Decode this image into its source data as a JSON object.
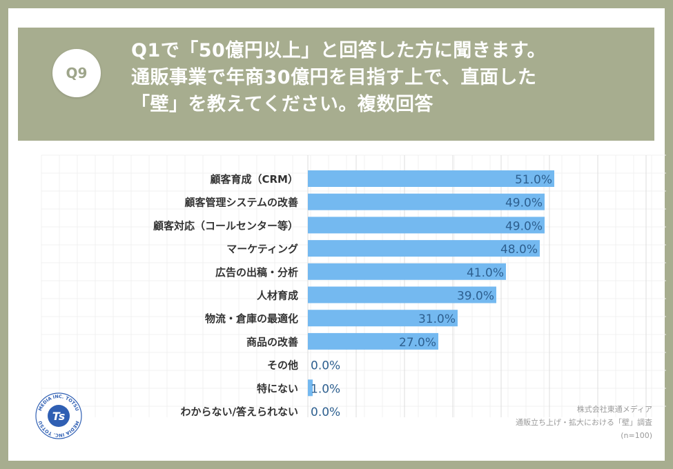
{
  "question": {
    "badge": "Q9",
    "lines": [
      "Q1で「50億円以上」と回答した方に聞きます。",
      "通販事業で年商30億円を目指す上で、直面した",
      "「壁」を教えてください。複数回答"
    ]
  },
  "credit": {
    "company": "株式会社東通メディア",
    "survey": "通販立ち上げ・拡大における「壁」調査",
    "sample": "(n=100)"
  },
  "logo": {
    "text_top": "MEDIA INC. TOTSU",
    "text_bottom": "MEDIA INC. TOTSU",
    "glyph": "Ts"
  },
  "colors": {
    "bar": "#74b9f0",
    "header": "#a7ad8f",
    "label": "#333333",
    "value": "#2d5f8f"
  },
  "chart_data": {
    "type": "bar",
    "orientation": "horizontal",
    "categories": [
      "顧客育成（CRM）",
      "顧客管理システムの改善",
      "顧客対応（コールセンター等）",
      "マーケティング",
      "広告の出稿・分析",
      "人材育成",
      "物流・倉庫の最適化",
      "商品の改善",
      "その他",
      "特にない",
      "わからない/答えられない"
    ],
    "values": [
      51.0,
      49.0,
      49.0,
      48.0,
      41.0,
      39.0,
      31.0,
      27.0,
      0.0,
      1.0,
      0.0
    ],
    "value_labels": [
      "51.0%",
      "49.0%",
      "49.0%",
      "48.0%",
      "41.0%",
      "39.0%",
      "31.0%",
      "27.0%",
      "0.0%",
      "1.0%",
      "0.0%"
    ],
    "xlim": [
      0,
      100
    ],
    "grid": true
  }
}
